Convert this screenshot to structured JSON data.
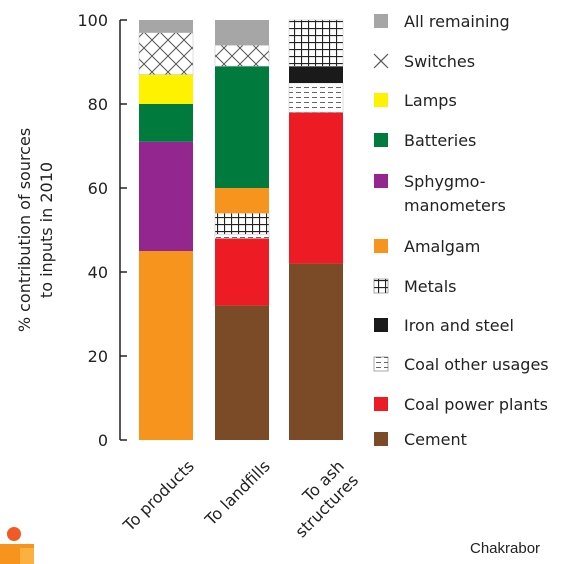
{
  "chart_data": {
    "type": "stacked_bar",
    "ylabel": [
      "% contribution of sources",
      "to inputs in 2010"
    ],
    "categories": [
      "To products",
      "To landfills",
      "To ash\nstructures"
    ],
    "ylim": [
      0,
      100
    ],
    "yticks": [
      0,
      20,
      40,
      60,
      80,
      100
    ],
    "series": [
      {
        "name": "Cement",
        "color": "#7b4a26",
        "values": [
          0,
          32,
          42
        ]
      },
      {
        "name": "Coal power plants",
        "color": "#ed1c24",
        "values": [
          0,
          16,
          36
        ]
      },
      {
        "name": "Coal other usages",
        "color": "#ffffff",
        "pattern": "dash",
        "values": [
          0,
          1,
          7
        ]
      },
      {
        "name": "Iron and steel",
        "color": "#1a1a1a",
        "values": [
          0,
          0,
          4
        ]
      },
      {
        "name": "Metals",
        "color": "#ffffff",
        "pattern": "grid",
        "values": [
          0,
          5,
          11
        ]
      },
      {
        "name": "Amalgam",
        "color": "#f7941d",
        "values": [
          45,
          6,
          0
        ]
      },
      {
        "name": "Sphygmo-\nmanometers",
        "color": "#93278f",
        "values": [
          26,
          0,
          0
        ]
      },
      {
        "name": "Batteries",
        "color": "#007a3d",
        "values": [
          9,
          29,
          0
        ]
      },
      {
        "name": "Lamps",
        "color": "#fff200",
        "values": [
          7,
          0,
          0
        ]
      },
      {
        "name": "Switches",
        "color": "#ffffff",
        "pattern": "cross",
        "values": [
          10,
          5,
          0
        ]
      },
      {
        "name": "All remaining",
        "color": "#a6a6a6",
        "values": [
          3,
          6,
          0
        ]
      }
    ],
    "credit": "Chakrabor"
  }
}
